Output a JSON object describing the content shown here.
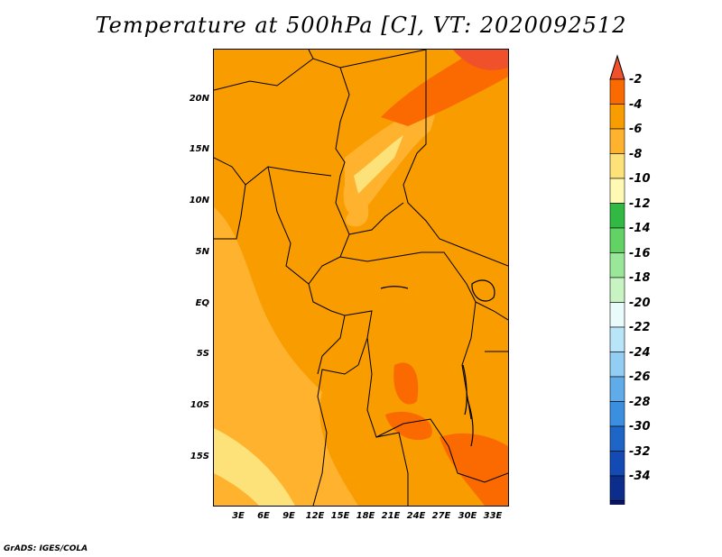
{
  "title": "Temperature at 500hPa [C], VT: 2020092512",
  "credit": "GrADS: IGES/COLA",
  "map": {
    "lat_range": [
      -20,
      25
    ],
    "lon_range": [
      0,
      35
    ],
    "lat_ticks": [
      "20N",
      "15N",
      "10N",
      "5N",
      "EQ",
      "5S",
      "10S",
      "15S"
    ],
    "lon_ticks": [
      "3E",
      "6E",
      "9E",
      "12E",
      "15E",
      "18E",
      "21E",
      "24E",
      "27E",
      "30E",
      "33E"
    ]
  },
  "colorbar": {
    "labels": [
      "-2",
      "-4",
      "-6",
      "-8",
      "-10",
      "-12",
      "-14",
      "-16",
      "-18",
      "-20",
      "-22",
      "-24",
      "-26",
      "-28",
      "-30",
      "-32",
      "-34"
    ],
    "colors": [
      "#f0502a",
      "#fa6a00",
      "#f89c00",
      "#ffb22e",
      "#fde27a",
      "#fff9b4",
      "#32b943",
      "#63d264",
      "#9be79a",
      "#c8f3c3",
      "#e9fbfb",
      "#b9e5f8",
      "#93cdf3",
      "#60abe9",
      "#3a8fe0",
      "#1e65c8",
      "#144ab3",
      "#0c2d8c",
      "#0a1460",
      "#e2e2f8"
    ]
  }
}
